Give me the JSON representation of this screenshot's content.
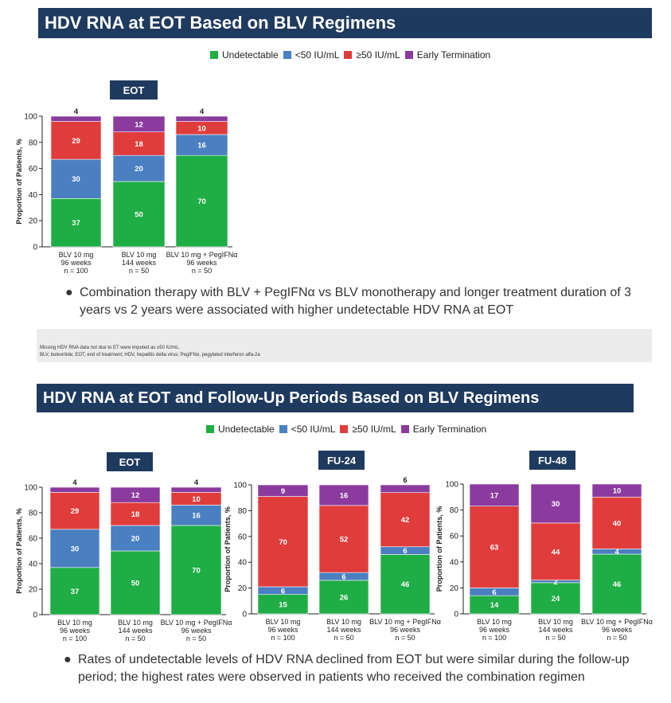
{
  "colors": {
    "undetectable": "#1fad45",
    "lt50": "#4a7fc1",
    "ge50": "#e03c3c",
    "early": "#8b3a9e",
    "title_bg": "#1f3a5f"
  },
  "legend_labels": [
    "Undetectable",
    "<50 IU/mL",
    "≥50 IU/mL",
    "Early Termination"
  ],
  "top": {
    "title": "HDV RNA at EOT Based on BLV Regimens",
    "bullet": "Combination therapy with BLV + PegIFNα vs BLV monotherapy and longer treatment duration of 3 years vs 2 years were associated with higher undetectable HDV RNA at EOT",
    "footnote1": "Missing HDV RNA data not due to ET were imputed as ≥50 IU/mL.",
    "footnote2": "BLV, bulevirtide; EOT, end of treatment; HDV, hepatitis delta virus; PegIFNα, pegylated interferon alfa-2a"
  },
  "bottom": {
    "title": "HDV RNA at EOT and Follow-Up Periods Based on BLV Regimens",
    "bullet": "Rates of undetectable levels of HDV RNA declined from EOT but were similar during the follow-up period; the highest rates were observed in patients who received the combination regimen"
  },
  "chart_data": [
    {
      "type": "bar",
      "stacked": true,
      "panel": "EOT",
      "ylabel": "Proportion of Patients, %",
      "ylim": [
        0,
        100
      ],
      "yticks": [
        0,
        20,
        40,
        60,
        80,
        100
      ],
      "categories": [
        [
          "BLV 10 mg",
          "96 weeks",
          "n = 100"
        ],
        [
          "BLV 10 mg",
          "144 weeks",
          "n = 50"
        ],
        [
          "BLV 10 mg + PegIFNα",
          "96 weeks",
          "n = 50"
        ]
      ],
      "series": [
        {
          "name": "Undetectable",
          "values": [
            37,
            50,
            70
          ]
        },
        {
          "name": "<50 IU/mL",
          "values": [
            30,
            20,
            16
          ]
        },
        {
          "name": "≥50 IU/mL",
          "values": [
            29,
            18,
            10
          ]
        },
        {
          "name": "Early Termination",
          "values": [
            4,
            12,
            4
          ]
        }
      ]
    },
    {
      "type": "bar",
      "stacked": true,
      "panel": "EOT",
      "ylabel": "Proportion of Patients, %",
      "ylim": [
        0,
        100
      ],
      "yticks": [
        0,
        20,
        40,
        60,
        80,
        100
      ],
      "categories": [
        [
          "BLV 10 mg",
          "96 weeks",
          "n = 100"
        ],
        [
          "BLV 10 mg",
          "144 weeks",
          "n = 50"
        ],
        [
          "BLV 10 mg + PegIFNα",
          "96 weeks",
          "n = 50"
        ]
      ],
      "series": [
        {
          "name": "Undetectable",
          "values": [
            37,
            50,
            70
          ]
        },
        {
          "name": "<50 IU/mL",
          "values": [
            30,
            20,
            16
          ]
        },
        {
          "name": "≥50 IU/mL",
          "values": [
            29,
            18,
            10
          ]
        },
        {
          "name": "Early Termination",
          "values": [
            4,
            12,
            4
          ]
        }
      ]
    },
    {
      "type": "bar",
      "stacked": true,
      "panel": "FU-24",
      "ylabel": "Proportion of Patients, %",
      "ylim": [
        0,
        100
      ],
      "yticks": [
        0,
        20,
        40,
        60,
        80,
        100
      ],
      "categories": [
        [
          "BLV 10 mg",
          "96 weeks",
          "n = 100"
        ],
        [
          "BLV 10 mg",
          "144 weeks",
          "n = 50"
        ],
        [
          "BLV 10 mg + PegIFNα",
          "96 weeks",
          "n = 50"
        ]
      ],
      "series": [
        {
          "name": "Undetectable",
          "values": [
            15,
            26,
            46
          ]
        },
        {
          "name": "<50 IU/mL",
          "values": [
            6,
            6,
            6
          ]
        },
        {
          "name": "≥50 IU/mL",
          "values": [
            70,
            52,
            42
          ]
        },
        {
          "name": "Early Termination",
          "values": [
            9,
            16,
            6
          ]
        }
      ]
    },
    {
      "type": "bar",
      "stacked": true,
      "panel": "FU-48",
      "ylabel": "",
      "ylim": [
        0,
        100
      ],
      "yticks": [
        0,
        20,
        40,
        60,
        80,
        100
      ],
      "categories": [
        [
          "BLV 10 mg",
          "96 weeks",
          "n = 100"
        ],
        [
          "BLV 10 mg",
          "144 weeks",
          "n = 50"
        ],
        [
          "BLV 10 mg + PegIFNα",
          "96 weeks",
          "n = 50"
        ]
      ],
      "series": [
        {
          "name": "Undetectable",
          "values": [
            14,
            24,
            46
          ]
        },
        {
          "name": "<50 IU/mL",
          "values": [
            6,
            2,
            4
          ]
        },
        {
          "name": "≥50 IU/mL",
          "values": [
            63,
            44,
            40
          ]
        },
        {
          "name": "Early Termination",
          "values": [
            17,
            30,
            10
          ]
        }
      ]
    }
  ]
}
